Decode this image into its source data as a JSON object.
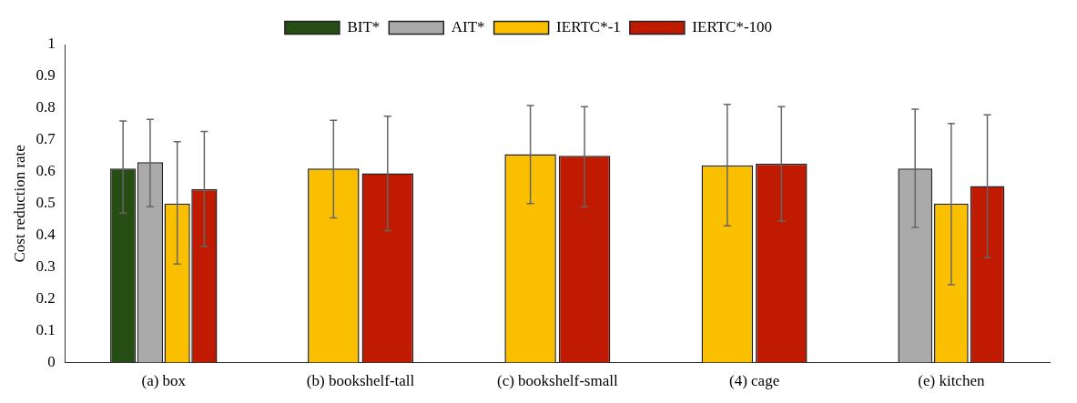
{
  "chart_data": {
    "type": "bar",
    "ylabel": "Cost reduction rate",
    "categories": [
      "(a) box",
      "(b) bookshelf-tall",
      "(c) bookshelf-small",
      "(4) cage",
      "(e) kitchen"
    ],
    "series": [
      {
        "name": "BIT*",
        "color": "#264e14",
        "values": [
          0.61,
          null,
          null,
          null,
          null
        ],
        "errors": [
          [
            0.47,
            0.76
          ],
          null,
          null,
          null,
          null
        ]
      },
      {
        "name": "AIT*",
        "color": "#aaaaaa",
        "values": [
          0.63,
          null,
          null,
          null,
          0.61
        ],
        "errors": [
          [
            0.49,
            0.765
          ],
          null,
          null,
          null,
          [
            0.425,
            0.797
          ]
        ]
      },
      {
        "name": "IERTC*-1",
        "color": "#fac000",
        "values": [
          0.5,
          0.61,
          0.655,
          0.62,
          0.5
        ],
        "errors": [
          [
            0.31,
            0.695
          ],
          [
            0.455,
            0.762
          ],
          [
            0.5,
            0.808
          ],
          [
            0.43,
            0.812
          ],
          [
            0.245,
            0.752
          ]
        ]
      },
      {
        "name": "IERTC*-100",
        "color": "#c01a00",
        "values": [
          0.545,
          0.595,
          0.65,
          0.625,
          0.555
        ],
        "errors": [
          [
            0.365,
            0.727
          ],
          [
            0.415,
            0.775
          ],
          [
            0.49,
            0.805
          ],
          [
            0.445,
            0.805
          ],
          [
            0.33,
            0.779
          ]
        ]
      }
    ],
    "ylim": [
      0,
      1
    ],
    "yticks": [
      0,
      0.1,
      0.2,
      0.3,
      0.4,
      0.5,
      0.6,
      0.7,
      0.8,
      0.9,
      1
    ],
    "grid": false,
    "legend": "top"
  }
}
